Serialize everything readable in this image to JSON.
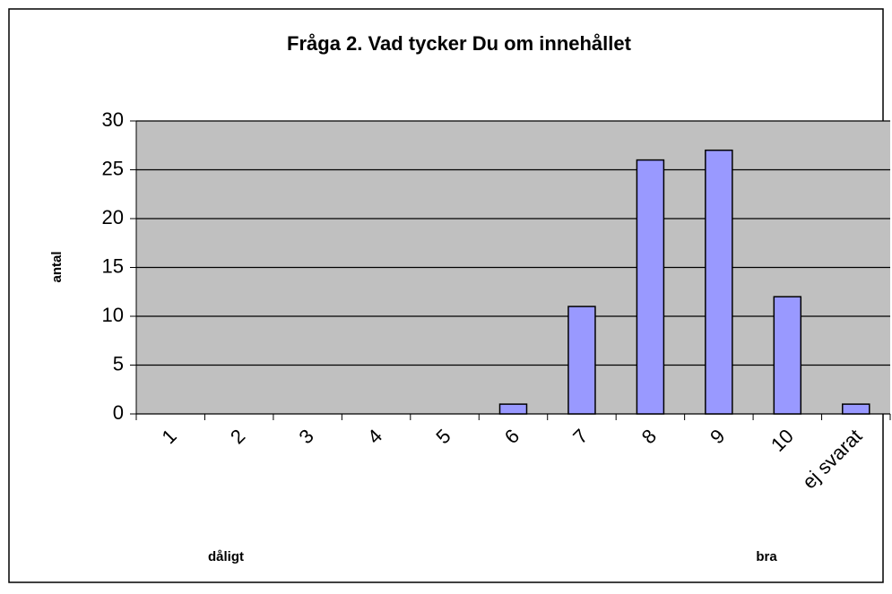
{
  "chart_data": {
    "type": "bar",
    "title": "Fråga 2. Vad tycker Du om innehållet",
    "y_label": "antal",
    "annotations": [
      "dåligt",
      "bra"
    ],
    "categories": [
      "1",
      "2",
      "3",
      "4",
      "5",
      "6",
      "7",
      "8",
      "9",
      "10",
      "ej svarat"
    ],
    "values": [
      0,
      0,
      0,
      0,
      0,
      1,
      11,
      26,
      27,
      12,
      1
    ],
    "color": "#9999ff",
    "ylim": [
      0,
      30
    ],
    "yticks": [
      0,
      5,
      10,
      15,
      20,
      25,
      30
    ],
    "grid": true
  }
}
